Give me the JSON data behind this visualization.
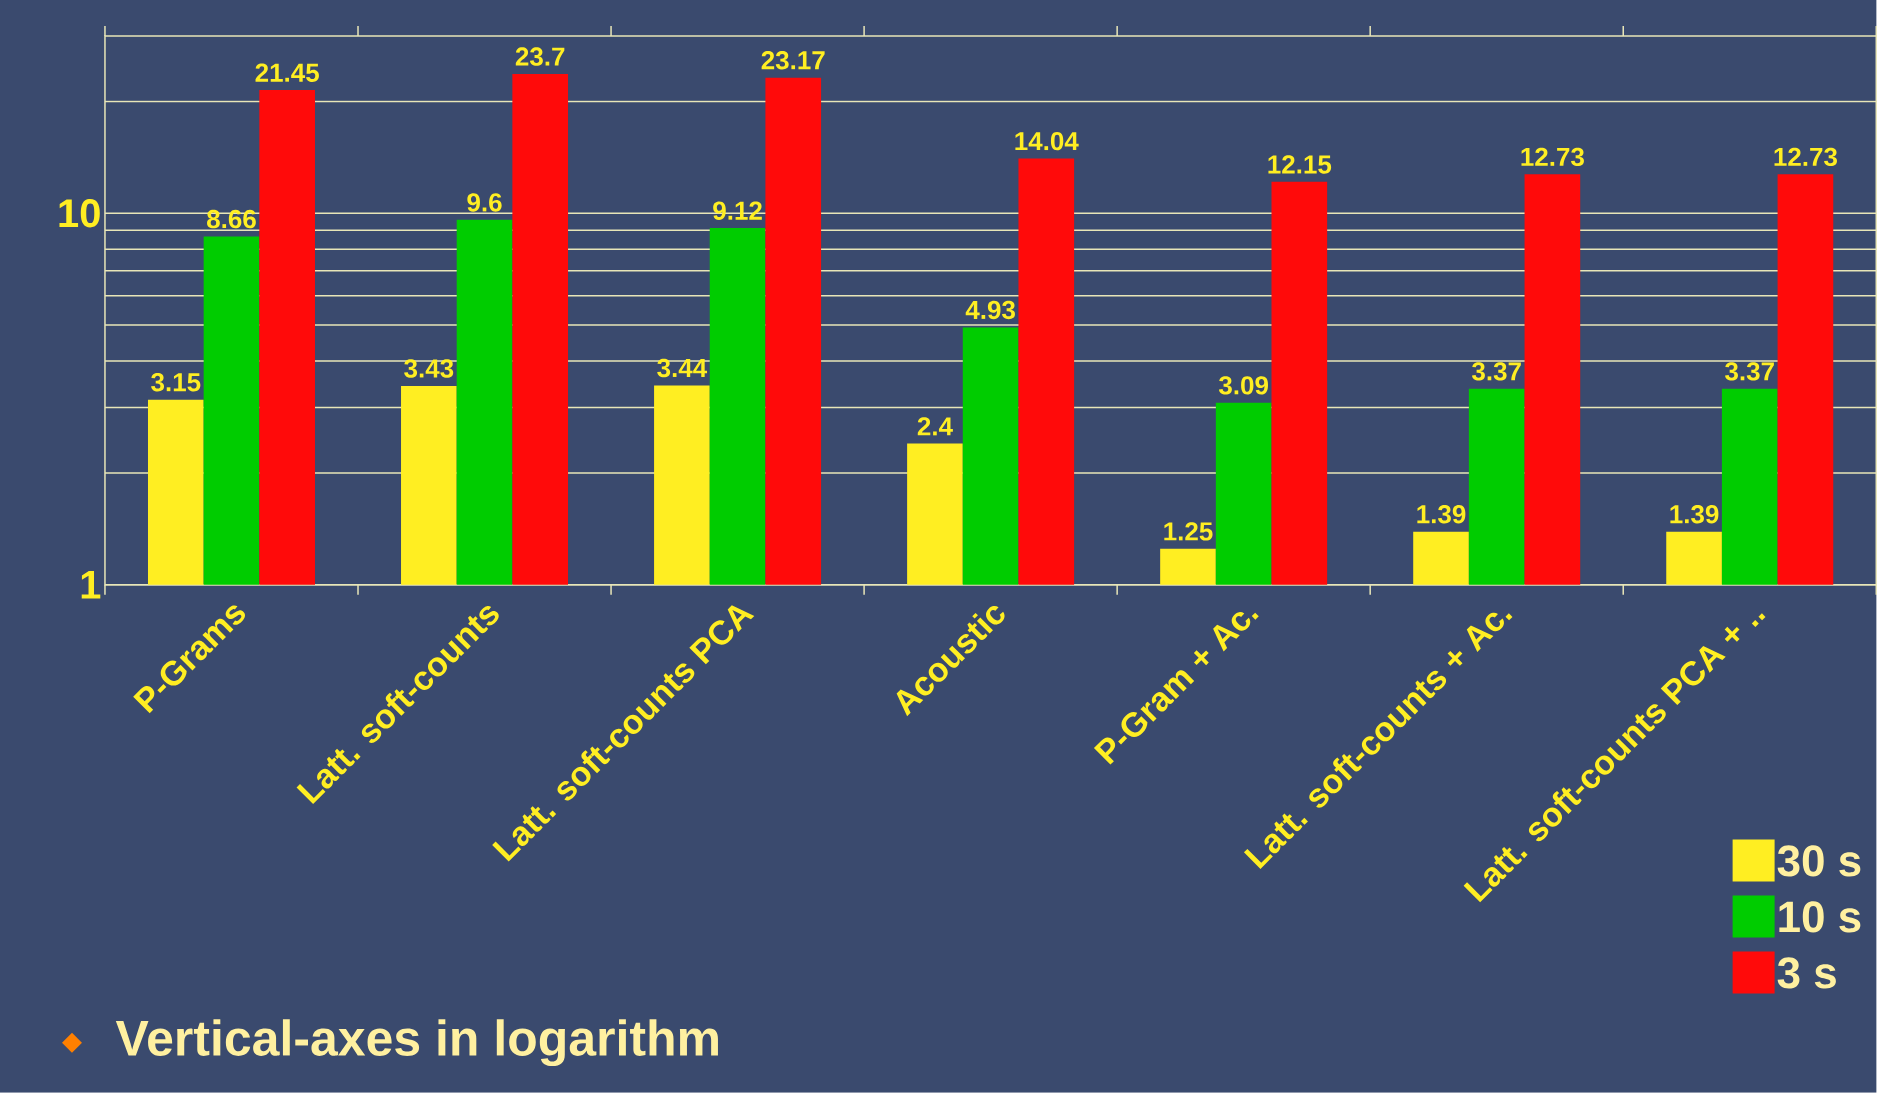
{
  "chart_data": {
    "type": "bar",
    "log": "y",
    "categories": [
      "P-Grams",
      "Latt. soft-counts",
      "Latt. soft-counts PCA",
      "Acoustic",
      "P-Gram + Ac.",
      "Latt. soft-counts + Ac.",
      "Latt. soft-counts PCA + .."
    ],
    "series": [
      {
        "name": "30 s",
        "color": "#ffee22",
        "values": [
          3.15,
          3.43,
          3.44,
          2.4,
          1.25,
          1.39,
          1.39
        ]
      },
      {
        "name": "10 s",
        "color": "#00cc00",
        "values": [
          8.66,
          9.6,
          9.12,
          4.93,
          3.09,
          3.37,
          3.37
        ]
      },
      {
        "name": "3 s",
        "color": "#ff0a0a",
        "values": [
          21.45,
          23.7,
          23.17,
          14.04,
          12.15,
          12.73,
          12.73
        ]
      }
    ],
    "ylim": [
      1,
      30
    ],
    "yticks": [
      1,
      {
        "value": 2,
        "label": null
      },
      {
        "value": 3,
        "label": null
      },
      {
        "value": 4,
        "label": null
      },
      {
        "value": 5,
        "label": null
      },
      {
        "value": 6,
        "label": null
      },
      {
        "value": 7,
        "label": null
      },
      {
        "value": 8,
        "label": null
      },
      {
        "value": 9,
        "label": null
      },
      10,
      {
        "value": 20,
        "label": null
      }
    ],
    "grid": "y",
    "legend": "bottom right",
    "data_labels": true,
    "annotations": [
      "Vertical-axes in logarithm"
    ]
  }
}
